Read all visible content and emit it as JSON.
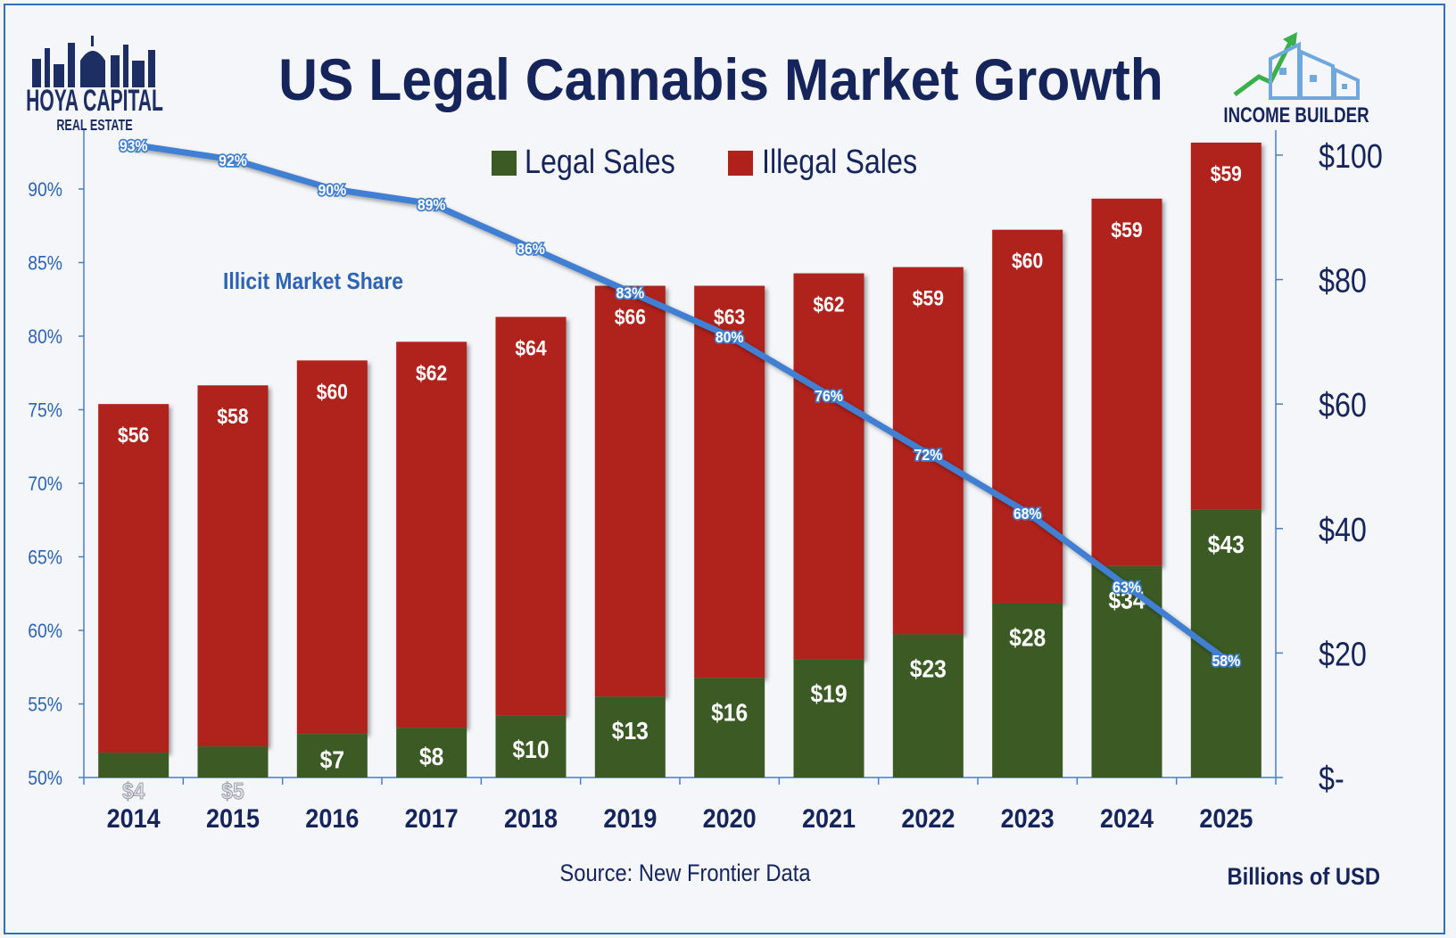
{
  "branding": {
    "left_logo_line1": "HOYA CAPITAL",
    "left_logo_line2": "REAL ESTATE",
    "right_logo_text": "INCOME BUILDER"
  },
  "footer": {
    "source": "Source: New Frontier Data",
    "units": "Billions of USD"
  },
  "colors": {
    "legal": "#3b5a24",
    "illegal": "#b0211b",
    "line": "#3f7fd2",
    "axis_text": "#2c63b5",
    "title": "#16245c"
  },
  "chart_data": {
    "type": "bar",
    "title": "US Legal Cannabis Market Growth",
    "categories": [
      "2014",
      "2015",
      "2016",
      "2017",
      "2018",
      "2019",
      "2020",
      "2021",
      "2022",
      "2023",
      "2024",
      "2025"
    ],
    "series": [
      {
        "name": "Legal Sales",
        "values": [
          4,
          5,
          7,
          8,
          10,
          13,
          16,
          19,
          23,
          28,
          34,
          43
        ],
        "labels": [
          "$4",
          "$5",
          "$7",
          "$8",
          "$10",
          "$13",
          "$16",
          "$19",
          "$23",
          "$28",
          "$34",
          "$43"
        ]
      },
      {
        "name": "Illegal Sales",
        "values": [
          56,
          58,
          60,
          62,
          64,
          66,
          63,
          62,
          59,
          60,
          59,
          59
        ],
        "labels": [
          "$56",
          "$58",
          "$60",
          "$62",
          "$64",
          "$66",
          "$63",
          "$62",
          "$59",
          "$60",
          "$59",
          "$59"
        ]
      }
    ],
    "stacked": true,
    "line_series": {
      "name": "Illicit Market Share",
      "values": [
        93,
        92,
        90,
        89,
        86,
        83,
        80,
        76,
        72,
        68,
        63,
        58
      ],
      "labels": [
        "93%",
        "92%",
        "90%",
        "89%",
        "86%",
        "83%",
        "80%",
        "76%",
        "72%",
        "68%",
        "63%",
        "58%"
      ]
    },
    "y_right": {
      "ticks": [
        0,
        20,
        40,
        60,
        80,
        100
      ],
      "tick_labels": [
        "$-",
        "$20",
        "$40",
        "$60",
        "$80",
        "$100"
      ],
      "range": [
        0,
        104
      ]
    },
    "y_left": {
      "ticks": [
        50,
        55,
        60,
        65,
        70,
        75,
        80,
        85,
        90
      ],
      "tick_labels": [
        "50%",
        "55%",
        "60%",
        "65%",
        "70%",
        "75%",
        "80%",
        "85%",
        "90%"
      ],
      "range": [
        50,
        94
      ]
    },
    "legend": "top-center",
    "grid": false
  }
}
